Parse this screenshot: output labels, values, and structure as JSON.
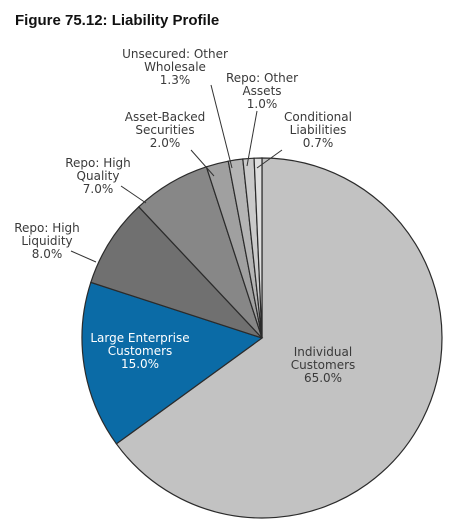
{
  "figure_title": "Figure 75.12: Liability Profile",
  "chart_data": {
    "type": "pie",
    "title": "Figure 75.12: Liability Profile",
    "unit": "%",
    "slices": [
      {
        "label": [
          "Individual",
          "Customers"
        ],
        "value": 65.0,
        "value_text": "65.0%",
        "color": "#c2c2c2"
      },
      {
        "label": [
          "Large Enterprise",
          "Customers"
        ],
        "value": 15.0,
        "value_text": "15.0%",
        "color": "#0b6ba6"
      },
      {
        "label": [
          "Repo: High",
          "Liquidity"
        ],
        "value": 8.0,
        "value_text": "8.0%",
        "color": "#707070"
      },
      {
        "label": [
          "Repo: High",
          "Quality"
        ],
        "value": 7.0,
        "value_text": "7.0%",
        "color": "#878787"
      },
      {
        "label": [
          "Asset-Backed",
          "Securities"
        ],
        "value": 2.0,
        "value_text": "2.0%",
        "color": "#a0a0a0"
      },
      {
        "label": [
          "Unsecured: Other",
          "Wholesale"
        ],
        "value": 1.3,
        "value_text": "1.3%",
        "color": "#b4b4b4"
      },
      {
        "label": [
          "Repo: Other",
          "Assets"
        ],
        "value": 1.0,
        "value_text": "1.0%",
        "color": "#cacaca"
      },
      {
        "label": [
          "Conditional",
          "Liabilities"
        ],
        "value": 0.7,
        "value_text": "0.7%",
        "color": "#dedede"
      }
    ]
  }
}
